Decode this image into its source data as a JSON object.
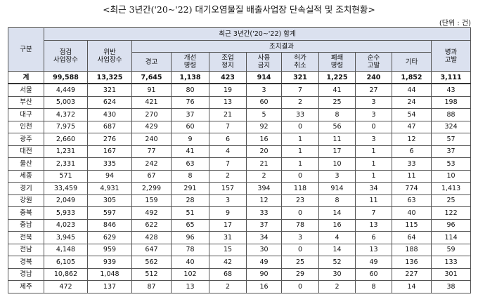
{
  "title": "<최근 3년간('20~'22) 대기오염물질 배출사업장 단속실적 및 조치현황>",
  "unit": "(단위 : 건)",
  "headers": {
    "category": "구분",
    "period": "최근 3년간('20~'22) 합계",
    "inspected": "점검\n사업장수",
    "violating": "위반\n사업장수",
    "actions": "조치결과",
    "warning": "경고",
    "improve": "개선\n명령",
    "suspend": "조업\n정지",
    "ban": "사용\n금지",
    "revoke": "허가\n취소",
    "close": "폐쇄\n명령",
    "prosecute": "순수\n고발",
    "other": "기타",
    "combined": "병과\n고발"
  },
  "total": [
    "계",
    "99,588",
    "13,325",
    "7,645",
    "1,138",
    "423",
    "914",
    "321",
    "1,225",
    "240",
    "1,852",
    "3,111"
  ],
  "rows": [
    [
      "서울",
      "4,449",
      "321",
      "91",
      "80",
      "19",
      "3",
      "7",
      "41",
      "27",
      "44",
      "43"
    ],
    [
      "부산",
      "5,003",
      "624",
      "421",
      "76",
      "13",
      "60",
      "2",
      "25",
      "3",
      "24",
      "198"
    ],
    [
      "대구",
      "4,372",
      "430",
      "270",
      "37",
      "21",
      "5",
      "33",
      "8",
      "3",
      "54",
      "88"
    ],
    [
      "인천",
      "7,975",
      "687",
      "429",
      "60",
      "7",
      "92",
      "0",
      "56",
      "0",
      "47",
      "324"
    ],
    [
      "광주",
      "2,660",
      "276",
      "240",
      "9",
      "6",
      "16",
      "1",
      "11",
      "3",
      "12",
      "57"
    ],
    [
      "대전",
      "1,231",
      "167",
      "77",
      "41",
      "4",
      "20",
      "1",
      "17",
      "1",
      "6",
      "37"
    ],
    [
      "울산",
      "2,331",
      "335",
      "242",
      "63",
      "7",
      "21",
      "1",
      "10",
      "1",
      "33",
      "53"
    ],
    [
      "세종",
      "571",
      "94",
      "67",
      "8",
      "2",
      "2",
      "0",
      "3",
      "1",
      "11",
      "10"
    ],
    [
      "경기",
      "33,459",
      "4,931",
      "2,299",
      "291",
      "157",
      "394",
      "118",
      "914",
      "34",
      "774",
      "1,413"
    ],
    [
      "강원",
      "2,049",
      "305",
      "159",
      "28",
      "3",
      "12",
      "23",
      "8",
      "11",
      "63",
      "25"
    ],
    [
      "충북",
      "5,933",
      "597",
      "492",
      "51",
      "9",
      "33",
      "0",
      "14",
      "7",
      "40",
      "122"
    ],
    [
      "충남",
      "4,023",
      "846",
      "622",
      "65",
      "17",
      "37",
      "78",
      "16",
      "13",
      "115",
      "96"
    ],
    [
      "전북",
      "3,945",
      "629",
      "428",
      "96",
      "31",
      "34",
      "3",
      "4",
      "6",
      "64",
      "114"
    ],
    [
      "전남",
      "4,148",
      "959",
      "647",
      "78",
      "15",
      "30",
      "0",
      "14",
      "13",
      "188",
      "59"
    ],
    [
      "경북",
      "6,105",
      "939",
      "562",
      "40",
      "42",
      "49",
      "25",
      "52",
      "49",
      "136",
      "133"
    ],
    [
      "경남",
      "10,862",
      "1,048",
      "512",
      "102",
      "68",
      "90",
      "29",
      "30",
      "60",
      "227",
      "301"
    ],
    [
      "제주",
      "472",
      "137",
      "87",
      "13",
      "2",
      "16",
      "0",
      "2",
      "8",
      "14",
      "38"
    ]
  ]
}
